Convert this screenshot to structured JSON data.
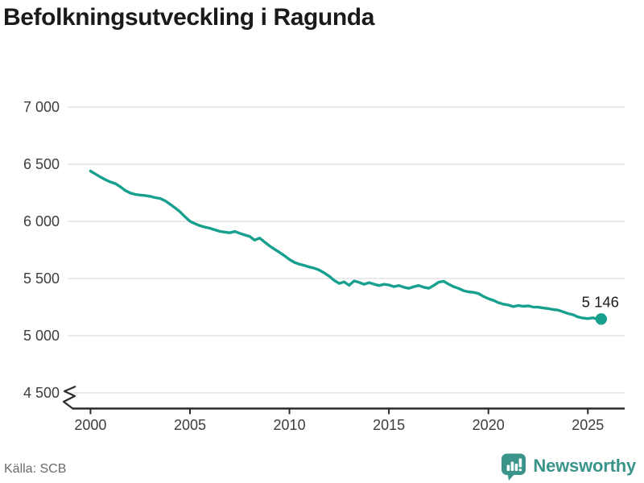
{
  "page": {
    "title": "Befolkningsutveckling i Ragunda",
    "source": "Källa: SCB",
    "brand": "Newsworthy"
  },
  "colors": {
    "line": "#17a08d",
    "brand": "#3a948a",
    "grid": "#e4e4e4",
    "axis": "#2b2b2b",
    "tick_text": "#3d3d3d",
    "title_text": "#1a1a1a",
    "source_text": "#6b6b6b",
    "end_label_text": "#1a1a1a"
  },
  "chart_data": {
    "type": "line",
    "title": "Befolkningsutveckling i Ragunda",
    "xlabel": "",
    "ylabel": "",
    "grid": "horizontal",
    "legend": "none",
    "y_axis_break": true,
    "xlim": [
      1998.85,
      2026.85
    ],
    "ylim_shown": [
      4500,
      7000
    ],
    "x_tick_values": [
      2000,
      2005,
      2010,
      2015,
      2020,
      2025
    ],
    "x_tick_labels": [
      "2000",
      "2005",
      "2010",
      "2015",
      "2020",
      "2025"
    ],
    "y_tick_values": [
      4500,
      5000,
      5500,
      6000,
      6500,
      7000
    ],
    "y_tick_labels": [
      "4 500",
      "5 000",
      "5 500",
      "6 000",
      "6 500",
      "7 000"
    ],
    "end_point": {
      "x": 2025.67,
      "value": 5146,
      "label": "5 146"
    },
    "series": [
      {
        "name": "Befolkning",
        "color": "#17a08d",
        "points": [
          [
            2000.0,
            6440
          ],
          [
            2000.25,
            6414
          ],
          [
            2000.5,
            6388
          ],
          [
            2000.75,
            6364
          ],
          [
            2001.0,
            6345
          ],
          [
            2001.25,
            6330
          ],
          [
            2001.5,
            6303
          ],
          [
            2001.75,
            6270
          ],
          [
            2002.0,
            6248
          ],
          [
            2002.25,
            6236
          ],
          [
            2002.5,
            6230
          ],
          [
            2002.75,
            6226
          ],
          [
            2003.0,
            6219
          ],
          [
            2003.25,
            6208
          ],
          [
            2003.5,
            6201
          ],
          [
            2003.75,
            6180
          ],
          [
            2004.0,
            6150
          ],
          [
            2004.25,
            6118
          ],
          [
            2004.5,
            6084
          ],
          [
            2004.75,
            6040
          ],
          [
            2005.0,
            6001
          ],
          [
            2005.25,
            5980
          ],
          [
            2005.5,
            5962
          ],
          [
            2005.75,
            5950
          ],
          [
            2006.0,
            5940
          ],
          [
            2006.25,
            5926
          ],
          [
            2006.5,
            5913
          ],
          [
            2006.75,
            5906
          ],
          [
            2007.0,
            5900
          ],
          [
            2007.25,
            5912
          ],
          [
            2007.5,
            5896
          ],
          [
            2007.75,
            5881
          ],
          [
            2008.0,
            5869
          ],
          [
            2008.25,
            5836
          ],
          [
            2008.5,
            5854
          ],
          [
            2008.75,
            5819
          ],
          [
            2009.0,
            5785
          ],
          [
            2009.25,
            5756
          ],
          [
            2009.5,
            5729
          ],
          [
            2009.75,
            5699
          ],
          [
            2010.0,
            5666
          ],
          [
            2010.25,
            5641
          ],
          [
            2010.5,
            5626
          ],
          [
            2010.75,
            5614
          ],
          [
            2011.0,
            5601
          ],
          [
            2011.25,
            5590
          ],
          [
            2011.5,
            5574
          ],
          [
            2011.75,
            5549
          ],
          [
            2012.0,
            5520
          ],
          [
            2012.25,
            5484
          ],
          [
            2012.5,
            5456
          ],
          [
            2012.75,
            5471
          ],
          [
            2013.0,
            5441
          ],
          [
            2013.25,
            5479
          ],
          [
            2013.5,
            5466
          ],
          [
            2013.75,
            5449
          ],
          [
            2014.0,
            5464
          ],
          [
            2014.25,
            5451
          ],
          [
            2014.5,
            5439
          ],
          [
            2014.75,
            5449
          ],
          [
            2015.0,
            5444
          ],
          [
            2015.25,
            5429
          ],
          [
            2015.5,
            5439
          ],
          [
            2015.75,
            5424
          ],
          [
            2016.0,
            5414
          ],
          [
            2016.25,
            5429
          ],
          [
            2016.5,
            5439
          ],
          [
            2016.75,
            5424
          ],
          [
            2017.0,
            5415
          ],
          [
            2017.25,
            5439
          ],
          [
            2017.5,
            5468
          ],
          [
            2017.75,
            5476
          ],
          [
            2018.0,
            5451
          ],
          [
            2018.25,
            5429
          ],
          [
            2018.5,
            5414
          ],
          [
            2018.75,
            5394
          ],
          [
            2019.0,
            5384
          ],
          [
            2019.25,
            5379
          ],
          [
            2019.5,
            5369
          ],
          [
            2019.75,
            5344
          ],
          [
            2020.0,
            5324
          ],
          [
            2020.25,
            5309
          ],
          [
            2020.5,
            5289
          ],
          [
            2020.75,
            5276
          ],
          [
            2021.0,
            5268
          ],
          [
            2021.25,
            5254
          ],
          [
            2021.5,
            5264
          ],
          [
            2021.75,
            5257
          ],
          [
            2022.0,
            5261
          ],
          [
            2022.25,
            5251
          ],
          [
            2022.5,
            5249
          ],
          [
            2022.75,
            5242
          ],
          [
            2023.0,
            5237
          ],
          [
            2023.25,
            5229
          ],
          [
            2023.5,
            5224
          ],
          [
            2023.75,
            5209
          ],
          [
            2024.0,
            5194
          ],
          [
            2024.25,
            5184
          ],
          [
            2024.5,
            5164
          ],
          [
            2024.75,
            5154
          ],
          [
            2025.0,
            5149
          ],
          [
            2025.25,
            5156
          ],
          [
            2025.5,
            5142
          ],
          [
            2025.67,
            5146
          ]
        ]
      }
    ]
  }
}
